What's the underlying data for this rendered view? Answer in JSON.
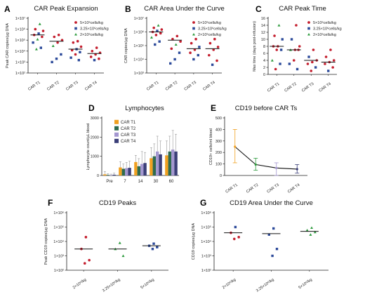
{
  "colors": {
    "high_dose": "#c41e2e",
    "mid_dose": "#2c4a9a",
    "low_dose": "#2e9b3e",
    "axis": "#222222",
    "median": "#111111",
    "bar_t1": "#f0a020",
    "bar_t2": "#2e6b4f",
    "bar_t3": "#a497d0",
    "bar_t4": "#3b3f78",
    "line_t1": "#f0a020"
  },
  "chart_data": [
    {
      "id": "A",
      "panel_letter": "A",
      "type": "scatter",
      "title": "CAR Peak Expansion",
      "ylabel": "Peak CAR copies/µg DNA",
      "yscale": "log",
      "ylim": [
        100,
        10000000
      ],
      "yticks": [
        "10²",
        "10³",
        "10⁴",
        "10⁵",
        "10⁶",
        "10⁷"
      ],
      "categories": [
        "CAR T1",
        "CAR T2",
        "CAR T3",
        "CAR T4"
      ],
      "medians": [
        300000,
        80000,
        15000,
        6000
      ],
      "legend": [
        {
          "label": "5×10⁶cells/kg",
          "group": "high"
        },
        {
          "label": "3.25×10⁶cells/kg",
          "group": "mid"
        },
        {
          "label": "2×10⁶cells/kg",
          "group": "low"
        }
      ],
      "points": [
        {
          "cat": 0,
          "y": 3000000,
          "group": "low"
        },
        {
          "cat": 0,
          "y": 1000000,
          "group": "high"
        },
        {
          "cat": 0,
          "y": 700000,
          "group": "high"
        },
        {
          "cat": 0,
          "y": 400000,
          "group": "mid"
        },
        {
          "cat": 0,
          "y": 300000,
          "group": "high"
        },
        {
          "cat": 0,
          "y": 200000,
          "group": "high"
        },
        {
          "cat": 0,
          "y": 120000,
          "group": "low"
        },
        {
          "cat": 0,
          "y": 60000,
          "group": "mid"
        },
        {
          "cat": 0,
          "y": 20000,
          "group": "mid"
        },
        {
          "cat": 0,
          "y": 15000,
          "group": "low"
        },
        {
          "cat": 1,
          "y": 300000,
          "group": "high"
        },
        {
          "cat": 1,
          "y": 200000,
          "group": "high"
        },
        {
          "cat": 1,
          "y": 100000,
          "group": "high"
        },
        {
          "cat": 1,
          "y": 60000,
          "group": "high"
        },
        {
          "cat": 1,
          "y": 30000,
          "group": "low"
        },
        {
          "cat": 1,
          "y": 5000,
          "group": "mid"
        },
        {
          "cat": 1,
          "y": 2000,
          "group": "mid"
        },
        {
          "cat": 1,
          "y": 1000,
          "group": "mid"
        },
        {
          "cat": 2,
          "y": 80000,
          "group": "high"
        },
        {
          "cat": 2,
          "y": 60000,
          "group": "high"
        },
        {
          "cat": 2,
          "y": 25000,
          "group": "high"
        },
        {
          "cat": 2,
          "y": 15000,
          "group": "mid"
        },
        {
          "cat": 2,
          "y": 12000,
          "group": "high"
        },
        {
          "cat": 2,
          "y": 8000,
          "group": "mid"
        },
        {
          "cat": 2,
          "y": 5000,
          "group": "high"
        },
        {
          "cat": 2,
          "y": 2500,
          "group": "mid"
        },
        {
          "cat": 2,
          "y": 1500,
          "group": "mid"
        },
        {
          "cat": 3,
          "y": 20000,
          "group": "high"
        },
        {
          "cat": 3,
          "y": 10000,
          "group": "high"
        },
        {
          "cat": 3,
          "y": 7000,
          "group": "high"
        },
        {
          "cat": 3,
          "y": 5000,
          "group": "high"
        },
        {
          "cat": 3,
          "y": 3000,
          "group": "high"
        },
        {
          "cat": 3,
          "y": 2000,
          "group": "high"
        },
        {
          "cat": 3,
          "y": 1500,
          "group": "mid"
        }
      ]
    },
    {
      "id": "B",
      "panel_letter": "B",
      "type": "scatter",
      "title": "CAR Area Under the Curve",
      "ylabel": "CAR copies/µg DNA",
      "yscale": "log",
      "ylim": [
        1000,
        10000000
      ],
      "yticks": [
        "10³",
        "10⁴",
        "10⁵",
        "10⁶",
        "10⁷"
      ],
      "categories": [
        "CAR T1",
        "CAR T2",
        "CAR T3",
        "CAR T4"
      ],
      "medians": [
        1000000,
        250000,
        60000,
        60000
      ],
      "legend": [
        {
          "label": "5×10⁶cells/kg",
          "group": "high"
        },
        {
          "label": "3.25×10⁶cells/kg",
          "group": "mid"
        },
        {
          "label": "2×10⁶cells/kg",
          "group": "low"
        }
      ],
      "points": [
        {
          "cat": 0,
          "y": 3000000,
          "group": "low"
        },
        {
          "cat": 0,
          "y": 2000000,
          "group": "high"
        },
        {
          "cat": 0,
          "y": 1500000,
          "group": "high"
        },
        {
          "cat": 0,
          "y": 1200000,
          "group": "mid"
        },
        {
          "cat": 0,
          "y": 1000000,
          "group": "high"
        },
        {
          "cat": 0,
          "y": 800000,
          "group": "high"
        },
        {
          "cat": 0,
          "y": 600000,
          "group": "high"
        },
        {
          "cat": 0,
          "y": 400000,
          "group": "low"
        },
        {
          "cat": 0,
          "y": 200000,
          "group": "mid"
        },
        {
          "cat": 0,
          "y": 120000,
          "group": "mid"
        },
        {
          "cat": 1,
          "y": 500000,
          "group": "high"
        },
        {
          "cat": 1,
          "y": 300000,
          "group": "high"
        },
        {
          "cat": 1,
          "y": 200000,
          "group": "high"
        },
        {
          "cat": 1,
          "y": 120000,
          "group": "low"
        },
        {
          "cat": 1,
          "y": 60000,
          "group": "high"
        },
        {
          "cat": 1,
          "y": 30000,
          "group": "mid"
        },
        {
          "cat": 1,
          "y": 10000,
          "group": "mid"
        },
        {
          "cat": 1,
          "y": 5000,
          "group": "mid"
        },
        {
          "cat": 2,
          "y": 300000,
          "group": "high"
        },
        {
          "cat": 2,
          "y": 150000,
          "group": "high"
        },
        {
          "cat": 2,
          "y": 80000,
          "group": "mid"
        },
        {
          "cat": 2,
          "y": 50000,
          "group": "high"
        },
        {
          "cat": 2,
          "y": 30000,
          "group": "high"
        },
        {
          "cat": 2,
          "y": 20000,
          "group": "mid"
        },
        {
          "cat": 2,
          "y": 10000,
          "group": "mid"
        },
        {
          "cat": 3,
          "y": 300000,
          "group": "high"
        },
        {
          "cat": 3,
          "y": 150000,
          "group": "high"
        },
        {
          "cat": 3,
          "y": 80000,
          "group": "high"
        },
        {
          "cat": 3,
          "y": 50000,
          "group": "high"
        },
        {
          "cat": 3,
          "y": 20000,
          "group": "high"
        },
        {
          "cat": 3,
          "y": 8000,
          "group": "high"
        },
        {
          "cat": 3,
          "y": 4000,
          "group": "mid"
        }
      ]
    },
    {
      "id": "C",
      "panel_letter": "C",
      "type": "scatter",
      "title": "CAR Peak Time",
      "ylabel": "Max time (days post-infusion)",
      "yscale": "linear",
      "ylim": [
        0,
        16
      ],
      "yticks": [
        "0",
        "2",
        "4",
        "6",
        "8",
        "10",
        "12",
        "14",
        "16"
      ],
      "categories": [
        "CAR T1",
        "CAR T2",
        "CAR T3",
        "CAR T4"
      ],
      "medians": [
        8,
        7,
        4,
        3.5
      ],
      "legend": [
        {
          "label": "5×10⁶cells/kg",
          "group": "high"
        },
        {
          "label": "3.25×10⁶cells/kg",
          "group": "mid"
        },
        {
          "label": "2×10⁶cells/kg",
          "group": "low"
        }
      ],
      "points": [
        {
          "cat": 0,
          "y": 14,
          "group": "low"
        },
        {
          "cat": 0,
          "y": 11,
          "group": "high"
        },
        {
          "cat": 0,
          "y": 10,
          "group": "mid"
        },
        {
          "cat": 0,
          "y": 8,
          "group": "high"
        },
        {
          "cat": 0,
          "y": 8,
          "group": "high"
        },
        {
          "cat": 0,
          "y": 7,
          "group": "mid"
        },
        {
          "cat": 0,
          "y": 7,
          "group": "high"
        },
        {
          "cat": 0,
          "y": 4,
          "group": "low"
        },
        {
          "cat": 0,
          "y": 3,
          "group": "mid"
        },
        {
          "cat": 0,
          "y": 1.5,
          "group": "high"
        },
        {
          "cat": 1,
          "y": 14,
          "group": "high"
        },
        {
          "cat": 1,
          "y": 10,
          "group": "mid"
        },
        {
          "cat": 1,
          "y": 8,
          "group": "high"
        },
        {
          "cat": 1,
          "y": 7,
          "group": "high"
        },
        {
          "cat": 1,
          "y": 7,
          "group": "low"
        },
        {
          "cat": 1,
          "y": 7,
          "group": "high"
        },
        {
          "cat": 1,
          "y": 4,
          "group": "high"
        },
        {
          "cat": 1,
          "y": 3,
          "group": "mid"
        },
        {
          "cat": 1,
          "y": 1.5,
          "group": "mid"
        },
        {
          "cat": 2,
          "y": 7,
          "group": "high"
        },
        {
          "cat": 2,
          "y": 5,
          "group": "mid"
        },
        {
          "cat": 2,
          "y": 4,
          "group": "high"
        },
        {
          "cat": 2,
          "y": 3.5,
          "group": "high"
        },
        {
          "cat": 2,
          "y": 3,
          "group": "high"
        },
        {
          "cat": 2,
          "y": 2,
          "group": "mid"
        },
        {
          "cat": 2,
          "y": 1,
          "group": "high"
        },
        {
          "cat": 3,
          "y": 7,
          "group": "high"
        },
        {
          "cat": 3,
          "y": 5,
          "group": "high"
        },
        {
          "cat": 3,
          "y": 4,
          "group": "high"
        },
        {
          "cat": 3,
          "y": 3.5,
          "group": "high"
        },
        {
          "cat": 3,
          "y": 3,
          "group": "high"
        },
        {
          "cat": 3,
          "y": 2,
          "group": "high"
        },
        {
          "cat": 3,
          "y": 1,
          "group": "mid"
        }
      ]
    },
    {
      "id": "D",
      "panel_letter": "D",
      "type": "bar",
      "title": "Lymphocytes",
      "ylabel": "Lymphocyte count/µL blood",
      "ylim": [
        0,
        3000
      ],
      "yticks": [
        "0",
        "1000",
        "2000",
        "3000"
      ],
      "categories": [
        "Pre",
        "7",
        "14",
        "30",
        "60"
      ],
      "series": [
        {
          "name": "CAR T1",
          "values": [
            60,
            420,
            700,
            900,
            1050
          ],
          "err": [
            150,
            300,
            350,
            550,
            750
          ]
        },
        {
          "name": "CAR T2",
          "values": [
            30,
            350,
            480,
            1000,
            1250
          ],
          "err": [
            60,
            250,
            400,
            650,
            800
          ]
        },
        {
          "name": "CAR T3",
          "values": [
            20,
            380,
            600,
            1250,
            1350
          ],
          "err": [
            50,
            300,
            650,
            800,
            1000
          ]
        },
        {
          "name": "CAR T4",
          "values": [
            40,
            400,
            650,
            1100,
            1250
          ],
          "err": [
            80,
            350,
            550,
            700,
            900
          ]
        }
      ]
    },
    {
      "id": "E",
      "panel_letter": "E",
      "type": "line",
      "title": "CD19 before CAR Ts",
      "ylabel": "CD19+ cells/ml blood",
      "ylim": [
        0,
        500
      ],
      "yticks": [
        "0",
        "100",
        "200",
        "300",
        "400",
        "500"
      ],
      "categories": [
        "CAR T1",
        "CAR T2",
        "CAR T3",
        "CAR T4"
      ],
      "values": [
        250,
        95,
        65,
        55
      ],
      "err_low": [
        110,
        45,
        0,
        20
      ],
      "err_high": [
        400,
        150,
        110,
        95
      ],
      "err_colors": [
        "#f0a020",
        "#2e9b3e",
        "#a497d0",
        "#3b3f78"
      ]
    },
    {
      "id": "F",
      "panel_letter": "F",
      "type": "scatter",
      "title": "CD19 Peaks",
      "ylabel": "Peak CD19 copies/µg DNA",
      "yscale": "log",
      "ylim": [
        100,
        1000000
      ],
      "yticks": [
        "10²",
        "10³",
        "10⁴",
        "10⁵",
        "10⁶"
      ],
      "categories": [
        "2×10⁶/kg",
        "3.25×10⁶/kg",
        "5×10⁶/kg"
      ],
      "medians": [
        3000,
        3000,
        5000
      ],
      "points": [
        {
          "cat": 0,
          "y": 20000,
          "group": "high"
        },
        {
          "cat": 0,
          "y": 3000,
          "group": "high"
        },
        {
          "cat": 0,
          "y": 500,
          "group": "high"
        },
        {
          "cat": 0,
          "y": 300,
          "group": "high"
        },
        {
          "cat": 1,
          "y": 8000,
          "group": "low"
        },
        {
          "cat": 1,
          "y": 3000,
          "group": "low"
        },
        {
          "cat": 1,
          "y": 1000,
          "group": "low"
        },
        {
          "cat": 2,
          "y": 7000,
          "group": "mid"
        },
        {
          "cat": 2,
          "y": 5000,
          "group": "mid"
        },
        {
          "cat": 2,
          "y": 4000,
          "group": "mid"
        },
        {
          "cat": 2,
          "y": 3000,
          "group": "mid"
        }
      ]
    },
    {
      "id": "G",
      "panel_letter": "G",
      "type": "scatter",
      "title": "CD19 Area Under the Curve",
      "ylabel": "CD19 copies/µg DNA",
      "yscale": "log",
      "ylim": [
        100,
        1000000
      ],
      "yticks": [
        "10²",
        "10³",
        "10⁴",
        "10⁵",
        "10⁶"
      ],
      "categories": [
        "2×10⁶/kg",
        "3.25×10⁶/kg",
        "5×10⁶/kg"
      ],
      "medians": [
        40000,
        35000,
        50000
      ],
      "points": [
        {
          "cat": 0,
          "y": 100000,
          "group": "mid"
        },
        {
          "cat": 0,
          "y": 40000,
          "group": "high"
        },
        {
          "cat": 0,
          "y": 20000,
          "group": "high"
        },
        {
          "cat": 0,
          "y": 15000,
          "group": "high"
        },
        {
          "cat": 1,
          "y": 80000,
          "group": "mid"
        },
        {
          "cat": 1,
          "y": 30000,
          "group": "mid"
        },
        {
          "cat": 1,
          "y": 3000,
          "group": "mid"
        },
        {
          "cat": 1,
          "y": 1000,
          "group": "mid"
        },
        {
          "cat": 2,
          "y": 90000,
          "group": "low"
        },
        {
          "cat": 2,
          "y": 60000,
          "group": "low"
        },
        {
          "cat": 2,
          "y": 45000,
          "group": "low"
        },
        {
          "cat": 2,
          "y": 30000,
          "group": "low"
        }
      ]
    }
  ]
}
